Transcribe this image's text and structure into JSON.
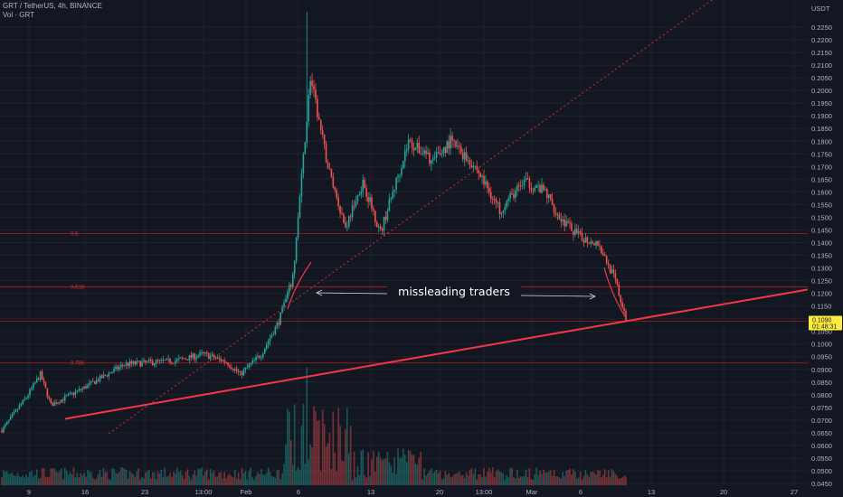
{
  "header": {
    "symbol": "GRT / TetherUS, 4h, BINANCE",
    "volume_label": "Vol · GRT"
  },
  "price_axis": {
    "unit": "USDT",
    "ticks": [
      "0.2250",
      "0.2200",
      "0.2150",
      "0.2100",
      "0.2050",
      "0.2000",
      "0.1950",
      "0.1900",
      "0.1850",
      "0.1800",
      "0.1750",
      "0.1700",
      "0.1650",
      "0.1600",
      "0.1550",
      "0.1500",
      "0.1450",
      "0.1400",
      "0.1350",
      "0.1300",
      "0.1250",
      "0.1200",
      "0.1150",
      "0.1100",
      "0.1050",
      "0.1000",
      "0.0950",
      "0.0900",
      "0.0850",
      "0.0800",
      "0.0750",
      "0.0700",
      "0.0650",
      "0.0600",
      "0.0550",
      "0.0500",
      "0.0450"
    ],
    "last_price": "0.1090",
    "countdown": "01:48:31"
  },
  "time_axis": {
    "ticks": [
      "9",
      "16",
      "23",
      "13:00",
      "Feb",
      "6",
      "13",
      "20",
      "13:00",
      "Mar",
      "6",
      "13",
      "20",
      "27"
    ]
  },
  "fib_levels": [
    {
      "label": "0.5",
      "price": 0.1435
    },
    {
      "label": "0.618",
      "price": 0.1225
    },
    {
      "label": "0.786",
      "price": 0.0925
    }
  ],
  "annotation": {
    "text": "missleading traders"
  },
  "chart_data": {
    "type": "candlestick",
    "title": "GRT / TetherUS, 4h, BINANCE",
    "ylabel": "USDT",
    "ylim": [
      0.044,
      0.231
    ],
    "x_ticks": [
      "9",
      "16",
      "23",
      "13:00",
      "Feb",
      "6",
      "13",
      "20",
      "13:00",
      "Mar",
      "6",
      "13",
      "20",
      "27"
    ],
    "key_closes": [
      {
        "t": 0,
        "price": 0.066
      },
      {
        "t": 14,
        "price": 0.079
      },
      {
        "t": 22,
        "price": 0.088
      },
      {
        "t": 28,
        "price": 0.076
      },
      {
        "t": 45,
        "price": 0.082
      },
      {
        "t": 70,
        "price": 0.092
      },
      {
        "t": 100,
        "price": 0.0935
      },
      {
        "t": 115,
        "price": 0.096
      },
      {
        "t": 128,
        "price": 0.093
      },
      {
        "t": 136,
        "price": 0.088
      },
      {
        "t": 148,
        "price": 0.096
      },
      {
        "t": 158,
        "price": 0.109
      },
      {
        "t": 166,
        "price": 0.126
      },
      {
        "t": 176,
        "price": 0.205
      },
      {
        "t": 186,
        "price": 0.17
      },
      {
        "t": 196,
        "price": 0.146
      },
      {
        "t": 206,
        "price": 0.164
      },
      {
        "t": 216,
        "price": 0.144
      },
      {
        "t": 232,
        "price": 0.18
      },
      {
        "t": 246,
        "price": 0.172
      },
      {
        "t": 256,
        "price": 0.18
      },
      {
        "t": 270,
        "price": 0.17
      },
      {
        "t": 284,
        "price": 0.153
      },
      {
        "t": 298,
        "price": 0.164
      },
      {
        "t": 310,
        "price": 0.16
      },
      {
        "t": 318,
        "price": 0.15
      },
      {
        "t": 330,
        "price": 0.142
      },
      {
        "t": 340,
        "price": 0.14
      },
      {
        "t": 350,
        "price": 0.125
      },
      {
        "t": 356,
        "price": 0.109
      }
    ],
    "trendline": [
      {
        "t": 0,
        "price": 0.0705
      },
      {
        "t": 356,
        "price": 0.109
      }
    ],
    "horizontal_levels": [
      0.1435,
      0.1225,
      0.109,
      0.0925
    ],
    "last_price": 0.109
  }
}
